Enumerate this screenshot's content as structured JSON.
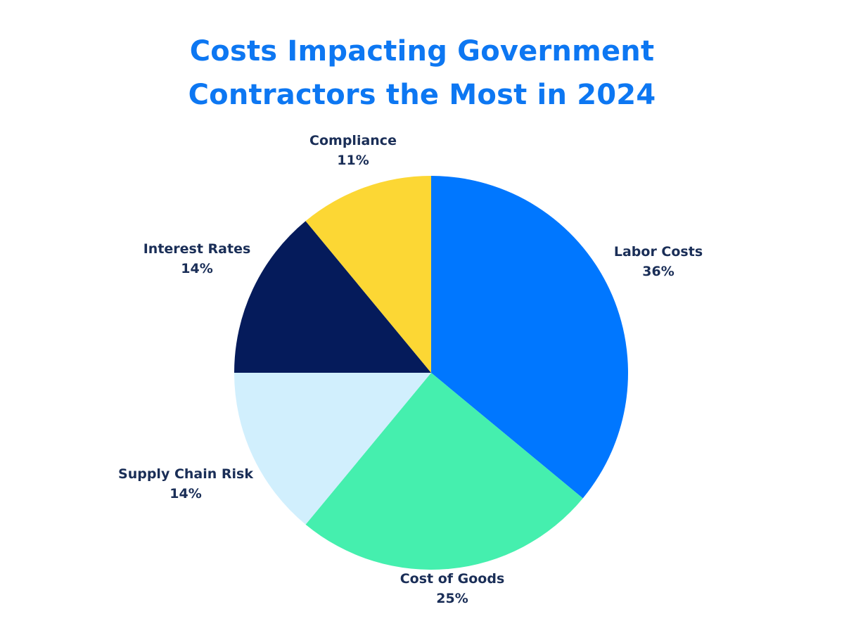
{
  "title_lines": [
    "Costs Impacting Government",
    "Contractors the Most in 2024"
  ],
  "colors": {
    "title": "#0d77f2",
    "labels": "#1a2e57",
    "background": "#ffffff"
  },
  "chart_data": {
    "type": "pie",
    "title": "Costs Impacting Government Contractors the Most in 2024",
    "start_angle_deg": 0,
    "direction": "clockwise",
    "slices": [
      {
        "key": "labor-costs",
        "label": "Labor Costs",
        "value": 36,
        "value_label": "36%",
        "color": "#0077ff"
      },
      {
        "key": "cost-of-goods",
        "label": "Cost of Goods",
        "value": 25,
        "value_label": "25%",
        "color": "#45efae"
      },
      {
        "key": "supply-chain-risk",
        "label": "Supply Chain Risk",
        "value": 14,
        "value_label": "14%",
        "color": "#d1effd"
      },
      {
        "key": "interest-rates",
        "label": "Interest Rates",
        "value": 14,
        "value_label": "14%",
        "color": "#051b5b"
      },
      {
        "key": "compliance",
        "label": "Compliance",
        "value": 11,
        "value_label": "11%",
        "color": "#fcd734"
      }
    ]
  }
}
